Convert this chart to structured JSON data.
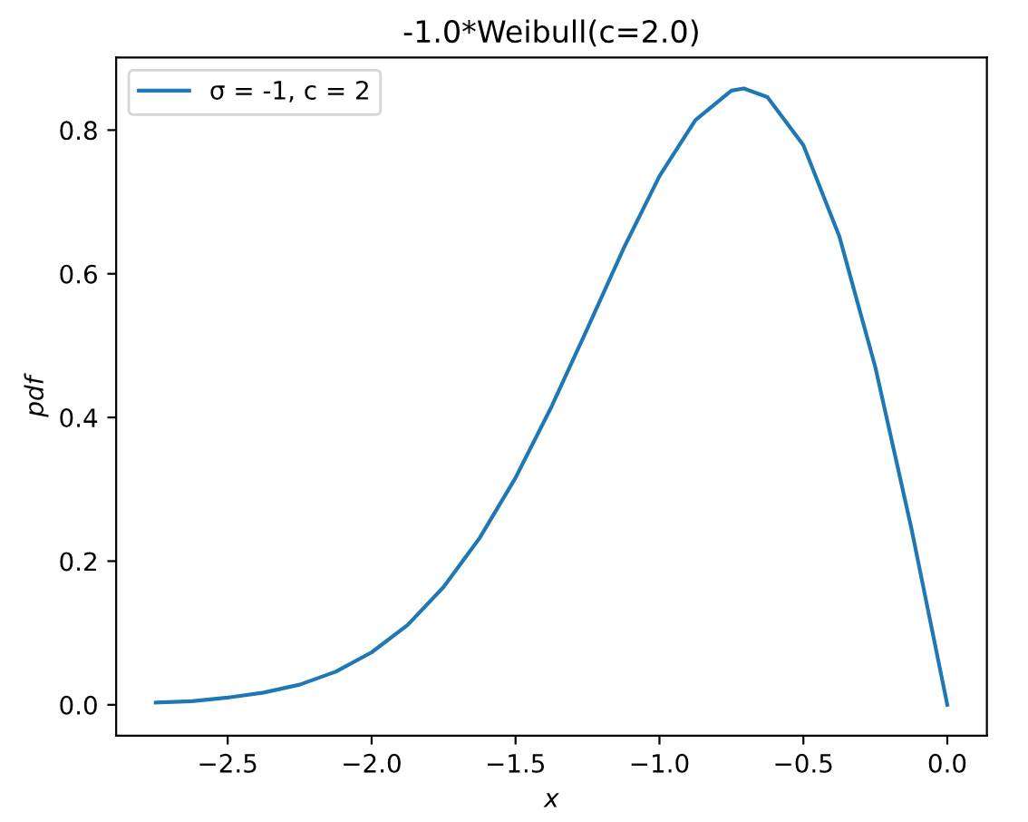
{
  "chart_data": {
    "type": "line",
    "title": "-1.0*Weibull(c=2.0)",
    "xlabel": "x",
    "ylabel": "pdf",
    "series": [
      {
        "name": "σ = -1, c = 2",
        "color": "#1f77b4",
        "x": [
          -2.75,
          -2.625,
          -2.5,
          -2.375,
          -2.25,
          -2.125,
          -2.0,
          -1.875,
          -1.75,
          -1.625,
          -1.5,
          -1.375,
          -1.25,
          -1.125,
          -1.0,
          -0.875,
          -0.75,
          -0.707,
          -0.625,
          -0.5,
          -0.375,
          -0.25,
          -0.125,
          0.0
        ],
        "values": [
          0.003,
          0.005,
          0.01,
          0.017,
          0.028,
          0.046,
          0.073,
          0.111,
          0.164,
          0.232,
          0.316,
          0.415,
          0.524,
          0.635,
          0.736,
          0.814,
          0.855,
          0.858,
          0.846,
          0.779,
          0.652,
          0.47,
          0.246,
          0.0
        ]
      }
    ],
    "xlim": [
      -2.8875,
      0.1375
    ],
    "ylim": [
      -0.043,
      0.901
    ],
    "xticks": [
      {
        "value": -2.5,
        "label": "−2.5"
      },
      {
        "value": -2.0,
        "label": "−2.0"
      },
      {
        "value": -1.5,
        "label": "−1.5"
      },
      {
        "value": -1.0,
        "label": "−1.0"
      },
      {
        "value": -0.5,
        "label": "−0.5"
      },
      {
        "value": 0.0,
        "label": "0.0"
      }
    ],
    "yticks": [
      {
        "value": 0.0,
        "label": "0.0"
      },
      {
        "value": 0.2,
        "label": "0.2"
      },
      {
        "value": 0.4,
        "label": "0.4"
      },
      {
        "value": 0.6,
        "label": "0.6"
      },
      {
        "value": 0.8,
        "label": "0.8"
      }
    ],
    "legend": "top left",
    "grid": false,
    "line_style": "solid"
  }
}
